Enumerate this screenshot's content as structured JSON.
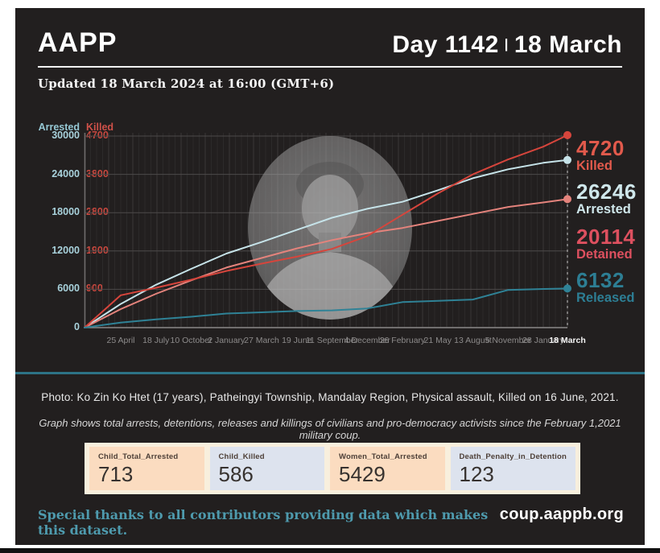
{
  "header": {
    "brand": "AAPP",
    "day_label": "Day 1142",
    "separator": "|",
    "date": "18 March"
  },
  "updated": "Updated 18 March 2024 at 16:00 (GMT+6)",
  "chart_data": {
    "type": "line",
    "title": "",
    "x_tick_labels": [
      "25 April",
      "18 July",
      "10 October",
      "2 January",
      "27 March",
      "19 June",
      "11 September",
      "4 December",
      "26 February",
      "21 May",
      "13 August",
      "5 November",
      "28 January",
      "18 March"
    ],
    "left_axis": {
      "label": "Arrested",
      "ticks": [
        30000,
        24000,
        18000,
        12000,
        6000,
        0
      ],
      "range": [
        0,
        30000
      ],
      "color": "#a9d2dc"
    },
    "right_axis": {
      "label": "Killed",
      "ticks": [
        4700,
        3800,
        2800,
        1900,
        900
      ],
      "range": [
        0,
        4700
      ],
      "color": "#c8483f"
    },
    "grid": true,
    "legend_position": "right",
    "series": [
      {
        "name": "Arrested",
        "axis": "left",
        "color": "#c6e3e9",
        "end_value": 26246,
        "values": [
          0,
          3700,
          6700,
          9200,
          11600,
          13400,
          15300,
          17200,
          18600,
          19700,
          21500,
          23400,
          24800,
          25800,
          26246
        ]
      },
      {
        "name": "Detained",
        "axis": "left",
        "color": "#e4837c",
        "end_value": 20114,
        "values": [
          0,
          2900,
          5300,
          7400,
          9400,
          10900,
          12400,
          13700,
          14800,
          15600,
          16700,
          17800,
          18900,
          19600,
          20114
        ]
      },
      {
        "name": "Killed",
        "axis": "right",
        "color": "#d6453c",
        "end_value": 4720,
        "values": [
          0,
          760,
          940,
          1150,
          1380,
          1570,
          1750,
          1950,
          2250,
          2750,
          3300,
          3800,
          4150,
          4450,
          4720
        ]
      },
      {
        "name": "Released",
        "axis": "left",
        "color": "#2f8296",
        "end_value": 6132,
        "values": [
          0,
          800,
          1300,
          1700,
          2200,
          2400,
          2600,
          2700,
          3000,
          4000,
          4200,
          4400,
          5900,
          6050,
          6132
        ]
      }
    ]
  },
  "totals": [
    {
      "value": "4720",
      "label": "Killed",
      "color": "#e25a4c"
    },
    {
      "value": "26246",
      "label": "Arrested",
      "color": "#cfe7eb"
    },
    {
      "value": "20114",
      "label": "Detained",
      "color": "#dd505f"
    },
    {
      "value": "6132",
      "label": "Released",
      "color": "#2d7e94"
    }
  ],
  "photo_caption": "Photo: Ko Zin Ko Htet (17 years), Patheingyi Township, Mandalay Region, Physical assault, Killed on 16 June, 2021.",
  "graph_note": "Graph shows total arrests, detentions, releases and killings of civilians and pro-democracy activists since the February 1,2021 military coup.",
  "stat_cards": [
    {
      "label": "Child_Total_Arrested",
      "value": "713",
      "bg": "#fbdcc0"
    },
    {
      "label": "Child_Killed",
      "value": "586",
      "bg": "#dde3ee"
    },
    {
      "label": "Women_Total_Arrested",
      "value": "5429",
      "bg": "#fbdcc0"
    },
    {
      "label": "Death_Penalty_in_Detention",
      "value": "123",
      "bg": "#dde3ee"
    }
  ],
  "footer": {
    "thanks": "Special thanks to all contributors providing data which makes this dataset.",
    "site": "coup.aappb.org"
  }
}
